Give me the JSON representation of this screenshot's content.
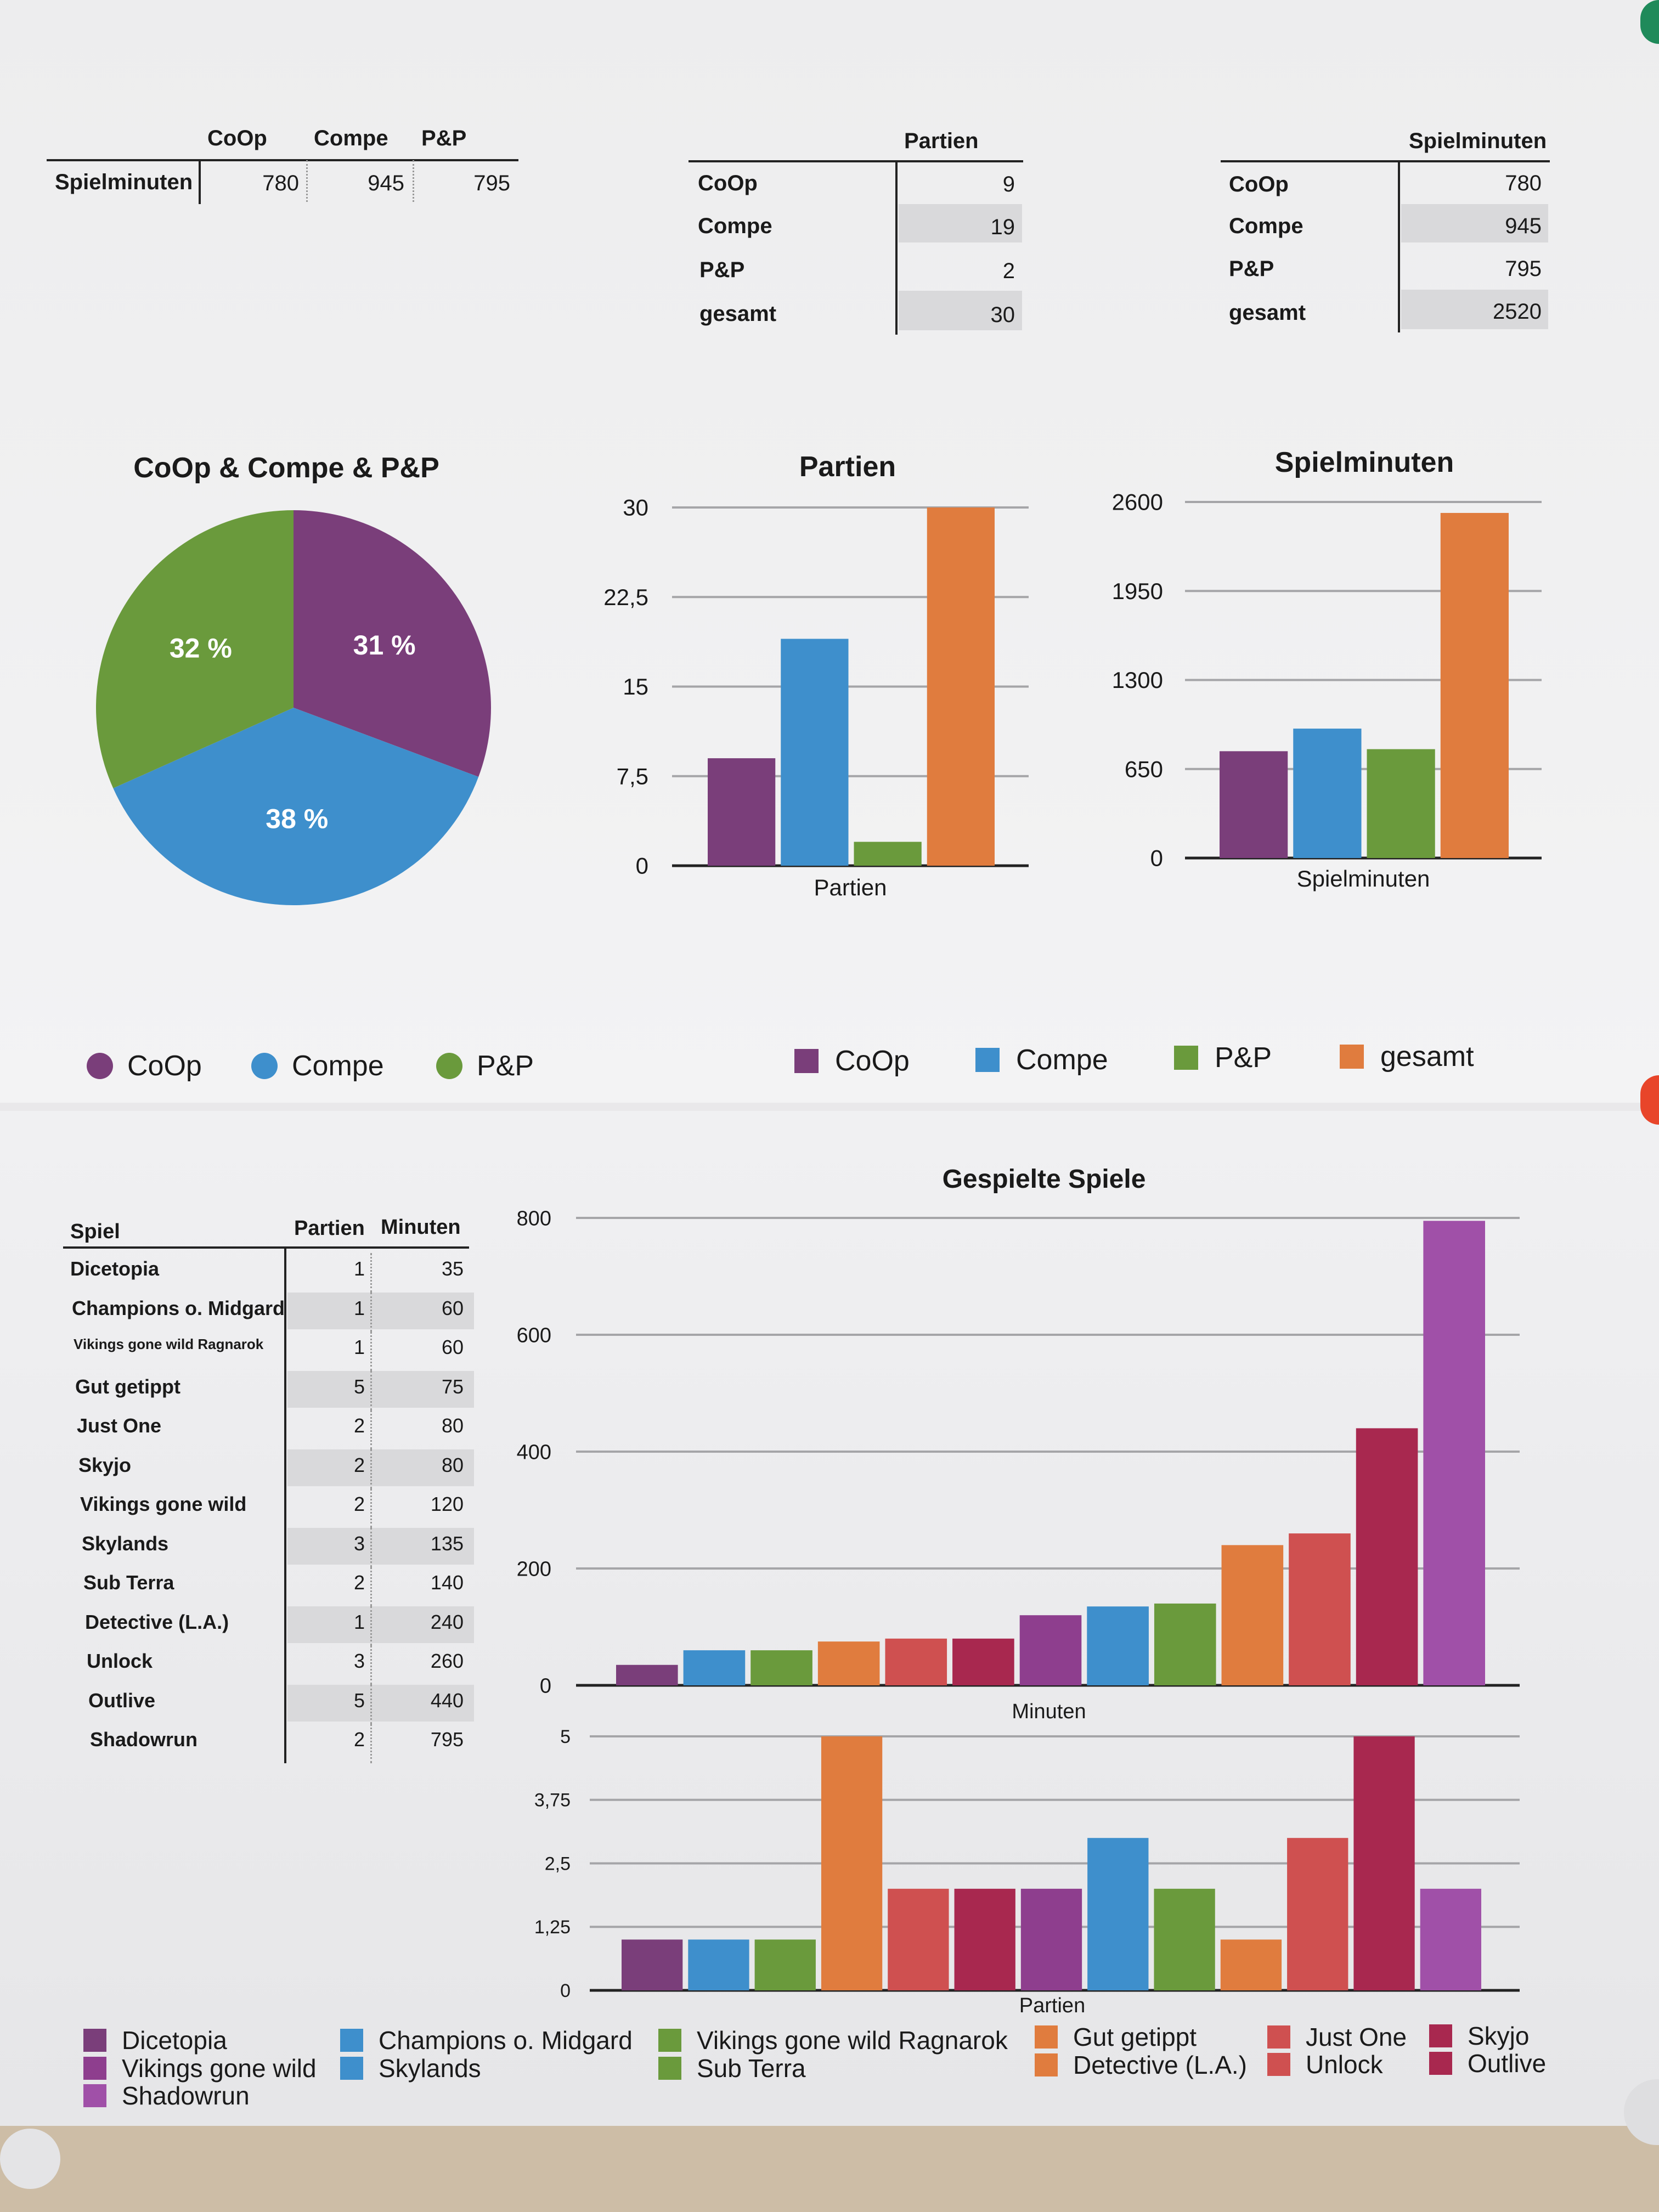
{
  "summary_tables": {
    "spielminuten_row": {
      "headers": [
        "CoOp",
        "Compe",
        "P&P"
      ],
      "row_label": "Spielminuten",
      "values": [
        "780",
        "945",
        "795"
      ]
    },
    "partien": {
      "header": "Partien",
      "rows": [
        {
          "label": "CoOp",
          "value": "9"
        },
        {
          "label": "Compe",
          "value": "19"
        },
        {
          "label": "P&P",
          "value": "2"
        },
        {
          "label": "gesamt",
          "value": "30"
        }
      ]
    },
    "spielminuten": {
      "header": "Spielminuten",
      "rows": [
        {
          "label": "CoOp",
          "value": "780"
        },
        {
          "label": "Compe",
          "value": "945"
        },
        {
          "label": "P&P",
          "value": "795"
        },
        {
          "label": "gesamt",
          "value": "2520"
        }
      ]
    }
  },
  "games_table": {
    "headers": [
      "Spiel",
      "Partien",
      "Minuten"
    ],
    "rows": [
      {
        "spiel": "Dicetopia",
        "partien": "1",
        "minuten": "35"
      },
      {
        "spiel": "Champions o. Midgard",
        "partien": "1",
        "minuten": "60"
      },
      {
        "spiel": "Vikings gone wild Ragnarok",
        "partien": "1",
        "minuten": "60"
      },
      {
        "spiel": "Gut getippt",
        "partien": "5",
        "minuten": "75"
      },
      {
        "spiel": "Just One",
        "partien": "2",
        "minuten": "80"
      },
      {
        "spiel": "Skyjo",
        "partien": "2",
        "minuten": "80"
      },
      {
        "spiel": "Vikings gone wild",
        "partien": "2",
        "minuten": "120"
      },
      {
        "spiel": "Skylands",
        "partien": "3",
        "minuten": "135"
      },
      {
        "spiel": "Sub Terra",
        "partien": "2",
        "minuten": "140"
      },
      {
        "spiel": "Detective (L.A.)",
        "partien": "1",
        "minuten": "240"
      },
      {
        "spiel": "Unlock",
        "partien": "3",
        "minuten": "260"
      },
      {
        "spiel": "Outlive",
        "partien": "5",
        "minuten": "440"
      },
      {
        "spiel": "Shadowrun",
        "partien": "2",
        "minuten": "795"
      }
    ]
  },
  "colors": {
    "coop": "#7a3e7a",
    "compe": "#3e8fcc",
    "pp": "#6a9a3c",
    "gesamt": "#e07c3e"
  },
  "chart_data": [
    {
      "type": "pie",
      "title": "CoOp & Compe & P&P",
      "slices": [
        {
          "name": "CoOp",
          "value": 31,
          "label": "31 %",
          "color": "#7a3e7a"
        },
        {
          "name": "Compe",
          "value": 38,
          "label": "38 %",
          "color": "#3e8fcc"
        },
        {
          "name": "P&P",
          "value": 32,
          "label": "32 %",
          "color": "#6a9a3c"
        }
      ],
      "legend": [
        "CoOp",
        "Compe",
        "P&P"
      ],
      "legend_placement": "bottom"
    },
    {
      "type": "bar",
      "title": "Partien",
      "xlabel": "Partien",
      "categories": [
        "CoOp",
        "Compe",
        "P&P",
        "gesamt"
      ],
      "values": [
        9,
        19,
        2,
        30
      ],
      "colors": [
        "#7a3e7a",
        "#3e8fcc",
        "#6a9a3c",
        "#e07c3e"
      ],
      "ylim": [
        0,
        30
      ],
      "yticks": [
        "0",
        "7,5",
        "15",
        "22,5",
        "30"
      ],
      "grid": true
    },
    {
      "type": "bar",
      "title": "Spielminuten",
      "xlabel": "Spielminuten",
      "categories": [
        "CoOp",
        "Compe",
        "P&P",
        "gesamt"
      ],
      "values": [
        780,
        945,
        795,
        2520
      ],
      "colors": [
        "#7a3e7a",
        "#3e8fcc",
        "#6a9a3c",
        "#e07c3e"
      ],
      "ylim": [
        0,
        2600
      ],
      "yticks": [
        "0",
        "650",
        "1300",
        "1950",
        "2600"
      ],
      "grid": true
    },
    {
      "type": "bar",
      "title": "Gespielte Spiele",
      "xlabel": "Minuten",
      "categories": [
        "Dicetopia",
        "Champions o. Midgard",
        "Vikings gone wild Ragnarok",
        "Gut getippt",
        "Just One",
        "Skyjo",
        "Vikings gone wild",
        "Skylands",
        "Sub Terra",
        "Detective (L.A.)",
        "Unlock",
        "Outlive",
        "Shadowrun"
      ],
      "values": [
        35,
        60,
        60,
        75,
        80,
        80,
        120,
        135,
        140,
        240,
        260,
        440,
        795
      ],
      "colors": [
        "#7a3e7a",
        "#3e8fcc",
        "#6a9a3c",
        "#e07c3e",
        "#cf5050",
        "#a8284f",
        "#8e3e8e",
        "#3e8fcc",
        "#6a9a3c",
        "#e07c3e",
        "#cf5050",
        "#a8284f",
        "#a050a8"
      ],
      "ylim": [
        0,
        800
      ],
      "yticks": [
        "0",
        "200",
        "400",
        "600",
        "800"
      ],
      "grid": true
    },
    {
      "type": "bar",
      "xlabel": "Partien",
      "categories": [
        "Dicetopia",
        "Champions o. Midgard",
        "Vikings gone wild Ragnarok",
        "Gut getippt",
        "Just One",
        "Skyjo",
        "Vikings gone wild",
        "Skylands",
        "Sub Terra",
        "Detective (L.A.)",
        "Unlock",
        "Outlive",
        "Shadowrun"
      ],
      "values": [
        1,
        1,
        1,
        5,
        2,
        2,
        2,
        3,
        2,
        1,
        3,
        5,
        2
      ],
      "colors": [
        "#7a3e7a",
        "#3e8fcc",
        "#6a9a3c",
        "#e07c3e",
        "#cf5050",
        "#a8284f",
        "#8e3e8e",
        "#3e8fcc",
        "#6a9a3c",
        "#e07c3e",
        "#cf5050",
        "#a8284f",
        "#a050a8"
      ],
      "ylim": [
        0,
        5
      ],
      "yticks": [
        "0",
        "1,25",
        "2,5",
        "3,75",
        "5"
      ],
      "grid": true
    }
  ],
  "legends": {
    "pie": [
      {
        "label": "CoOp",
        "color": "#7a3e7a"
      },
      {
        "label": "Compe",
        "color": "#3e8fcc"
      },
      {
        "label": "P&P",
        "color": "#6a9a3c"
      }
    ],
    "bars": [
      {
        "label": "CoOp",
        "color": "#7a3e7a"
      },
      {
        "label": "Compe",
        "color": "#3e8fcc"
      },
      {
        "label": "P&P",
        "color": "#6a9a3c"
      },
      {
        "label": "gesamt",
        "color": "#e07c3e"
      }
    ],
    "games": [
      {
        "label": "Dicetopia",
        "color": "#7a3e7a"
      },
      {
        "label": "Vikings gone wild",
        "color": "#8e3e8e"
      },
      {
        "label": "Shadowrun",
        "color": "#a050a8"
      },
      {
        "label": "Champions o. Midgard",
        "color": "#3e8fcc"
      },
      {
        "label": "Skylands",
        "color": "#3e8fcc"
      },
      {
        "label": "Vikings gone wild Ragnarok",
        "color": "#6a9a3c"
      },
      {
        "label": "Sub Terra",
        "color": "#6a9a3c"
      },
      {
        "label": "Gut getippt",
        "color": "#e07c3e"
      },
      {
        "label": "Detective (L.A.)",
        "color": "#e07c3e"
      },
      {
        "label": "Just One",
        "color": "#cf5050"
      },
      {
        "label": "Unlock",
        "color": "#cf5050"
      },
      {
        "label": "Skyjo",
        "color": "#a8284f"
      },
      {
        "label": "Outlive",
        "color": "#a8284f"
      }
    ]
  }
}
